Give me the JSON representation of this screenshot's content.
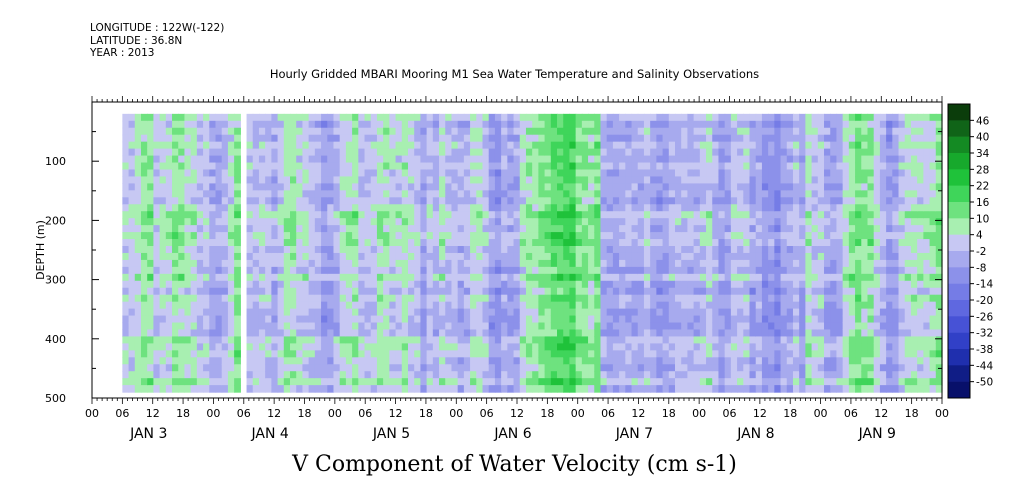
{
  "header": {
    "longitude": "LONGITUDE : 122W(-122)",
    "latitude": "LATITUDE : 36.8N",
    "year": "YEAR : 2013"
  },
  "chart_data": {
    "type": "heatmap",
    "title": "Hourly Gridded MBARI Mooring M1 Sea Water Temperature and Salinity Observations",
    "xlabel": "V Component of Water Velocity (cm s-1)",
    "ylabel": "DEPTH (m)",
    "y_axis": {
      "min": 0,
      "max": 500,
      "inverted": true,
      "ticks": [
        100,
        200,
        300,
        400,
        500
      ]
    },
    "x_axis": {
      "hour_ticks": [
        "00",
        "06",
        "12",
        "18",
        "00",
        "06",
        "12",
        "18",
        "00",
        "06",
        "12",
        "18",
        "00",
        "06",
        "12",
        "18",
        "00",
        "06",
        "12",
        "18",
        "00",
        "06",
        "12",
        "18",
        "00",
        "06",
        "12",
        "18",
        "00"
      ],
      "day_labels": [
        "JAN  3",
        "JAN  4",
        "JAN  5",
        "JAN  6",
        "JAN  7",
        "JAN  8",
        "JAN  9"
      ]
    },
    "colorbar": {
      "labels": [
        "46",
        "40",
        "34",
        "28",
        "22",
        "16",
        "10",
        "4",
        "-2",
        "-8",
        "-14",
        "-20",
        "-26",
        "-32",
        "-38",
        "-44",
        "-50"
      ],
      "colors": [
        "#0b3d0b",
        "#106418",
        "#148a23",
        "#17a92c",
        "#1fc23a",
        "#3fd55a",
        "#6ee27f",
        "#a8efb1",
        "#c7c8f3",
        "#a7aaee",
        "#8c91ea",
        "#757ce6",
        "#5f68e0",
        "#4752d6",
        "#3140c7",
        "#1f2fae",
        "#101d86",
        "#08106a"
      ]
    },
    "data_extent": {
      "start": "JAN 3 06:00",
      "end": "JAN 9 24:00",
      "depth_min": 20,
      "depth_max": 490
    },
    "gaps": [
      "JAN 4 05:00-06:00 (all depths)"
    ],
    "dominant_values_by_day": [
      {
        "day": "JAN 3",
        "range": "-14 to 22"
      },
      {
        "day": "JAN 4",
        "range": "-20 to 22"
      },
      {
        "day": "JAN 5",
        "range": "-20 to 28"
      },
      {
        "day": "JAN 6",
        "range": "-26 to 34"
      },
      {
        "day": "JAN 7",
        "range": "-26 to 10"
      },
      {
        "day": "JAN 8",
        "range": "-26 to 16"
      },
      {
        "day": "JAN 9",
        "range": "-20 to 16"
      }
    ]
  }
}
